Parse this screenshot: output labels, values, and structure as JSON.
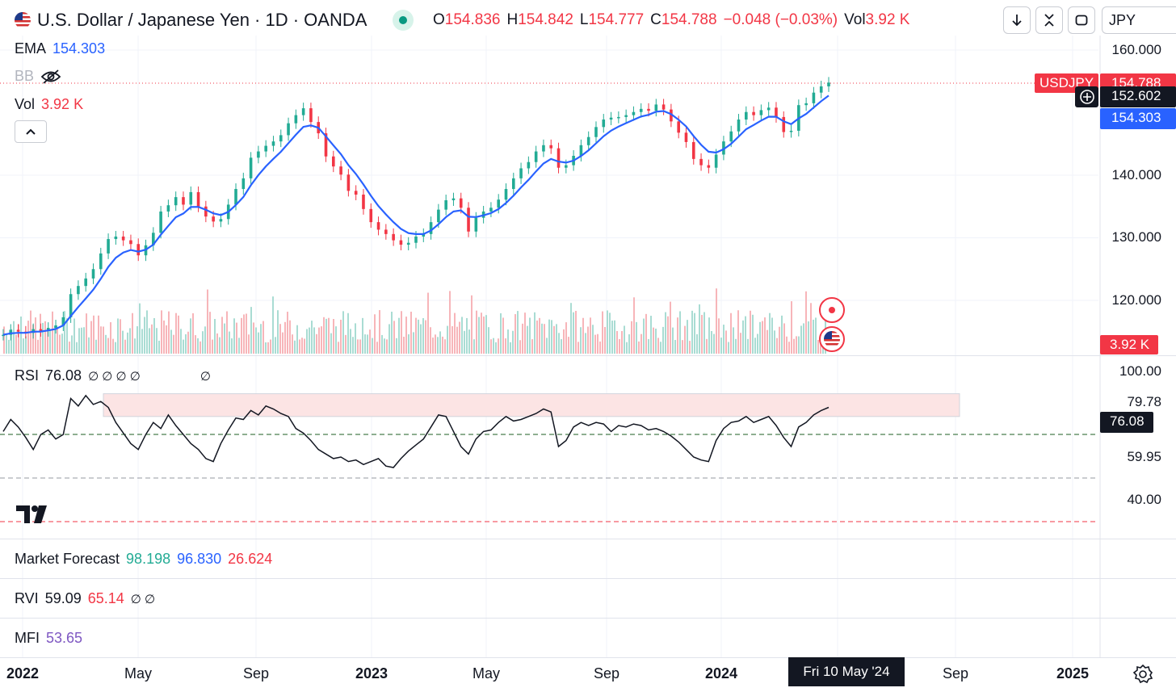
{
  "header": {
    "title": "U.S. Dollar / Japanese Yen · 1D · OANDA",
    "ohlc": [
      {
        "label": "O",
        "value": "154.836"
      },
      {
        "label": "H",
        "value": "154.842"
      },
      {
        "label": "L",
        "value": "154.777"
      },
      {
        "label": "C",
        "value": "154.788"
      }
    ],
    "change": "−0.048 (−0.03%)",
    "vol_label": "Vol",
    "vol_value": "3.92 K",
    "currency": "JPY"
  },
  "toolbar": {
    "icons": [
      "arrow-down-icon",
      "collapse-icon",
      "fullscreen-icon"
    ],
    "collapse_glyph": "^"
  },
  "legends": {
    "ema_label": "EMA",
    "ema_value": "154.303",
    "bb_label": "BB",
    "vol_label": "Vol",
    "vol_value": "3.92 K",
    "rsi_label": "RSI",
    "rsi_value": "76.08",
    "rsi_glyphs": "∅ ∅ ∅ ∅",
    "rsi_glyph2": "∅",
    "mf_label": "Market Forecast",
    "mf_v1": "98.198",
    "mf_v2": "96.830",
    "mf_v3": "26.624",
    "rvi_label": "RVI",
    "rvi_v1": "59.09",
    "rvi_v2": "65.14",
    "rvi_glyphs": "∅ ∅",
    "mfi_label": "MFI",
    "mfi_value": "53.65"
  },
  "price_axis": {
    "ticks": [
      "160.000",
      "140.000",
      "130.000",
      "120.000"
    ],
    "symbol_tag": "USDJPY",
    "last_price": "154.788",
    "crosshair_price": "152.602",
    "ema_tag": "154.303",
    "vol_tag": "3.92 K"
  },
  "rsi_axis": {
    "ticks": [
      "100.00",
      "79.78",
      "59.95",
      "40.00"
    ],
    "current": "76.08"
  },
  "time_axis": {
    "labels": [
      {
        "text": "2022",
        "bold": true
      },
      {
        "text": "May",
        "bold": false
      },
      {
        "text": "Sep",
        "bold": false
      },
      {
        "text": "2023",
        "bold": true
      },
      {
        "text": "May",
        "bold": false
      },
      {
        "text": "Sep",
        "bold": false
      },
      {
        "text": "2024",
        "bold": true
      },
      {
        "text": "Sep",
        "bold": false
      },
      {
        "text": "2025",
        "bold": true
      }
    ],
    "crosshair_date": "Fri 10 May '24"
  },
  "colors": {
    "up": "#22ab94",
    "down": "#f23645",
    "ema": "#2962ff",
    "rsi_band": "#fce4e4",
    "text": "#131722"
  },
  "chart_data": [
    {
      "type": "line",
      "title": "U.S. Dollar / Japanese Yen · 1D · OANDA",
      "series": [
        {
          "name": "USDJPY",
          "values": [
            114.5,
            115.3,
            115.0,
            114.8,
            115.4,
            115.1,
            115.6,
            116.0,
            117.3,
            121.0,
            122.3,
            123.5,
            125.0,
            127.5,
            129.8,
            130.2,
            129.6,
            129.0,
            127.2,
            128.8,
            130.8,
            134.2,
            135.2,
            136.5,
            135.3,
            137.3,
            135.0,
            133.4,
            132.6,
            133.0,
            135.3,
            137.8,
            139.5,
            142.8,
            143.8,
            144.7,
            145.4,
            146.4,
            148.3,
            149.6,
            150.7,
            148.5,
            146.7,
            143.0,
            141.4,
            140.1,
            137.5,
            136.9,
            134.6,
            132.5,
            131.3,
            130.6,
            129.6,
            128.9,
            129.2,
            130.2,
            130.6,
            132.5,
            134.5,
            136.0,
            136.3,
            134.8,
            131.0,
            133.2,
            134.2,
            134.8,
            136.1,
            137.8,
            139.5,
            141.1,
            142.1,
            143.8,
            144.8,
            144.3,
            141.2,
            141.6,
            143.1,
            144.8,
            146.1,
            147.7,
            148.9,
            149.2,
            149.3,
            149.6,
            150.1,
            150.6,
            150.3,
            151.3,
            150.5,
            148.6,
            146.8,
            145.3,
            142.6,
            141.6,
            141.2,
            143.3,
            145.4,
            147.0,
            148.9,
            150.1,
            149.6,
            150.4,
            150.8,
            149.3,
            146.9,
            147.1,
            151.2,
            151.5,
            153.2,
            154.2,
            154.8
          ]
        }
      ],
      "ema": {
        "name": "EMA",
        "last": 154.303
      },
      "ylim": [
        110,
        160
      ],
      "yticks": [
        120,
        130,
        140,
        160
      ],
      "x_range": [
        "2022-01-01",
        "2025-01-01"
      ],
      "x_step_days": 7
    },
    {
      "type": "line",
      "title": "RSI",
      "series": [
        {
          "name": "RSI",
          "values": [
            60,
            68,
            63,
            56,
            48,
            58,
            61,
            55,
            58,
            82,
            77,
            84,
            78,
            80,
            76,
            66,
            59,
            52,
            48,
            58,
            66,
            62,
            71,
            64,
            58,
            52,
            48,
            42,
            40,
            52,
            61,
            69,
            68,
            74,
            71,
            77,
            75,
            72,
            70,
            62,
            59,
            54,
            48,
            45,
            42,
            43,
            40,
            41,
            38,
            40,
            42,
            37,
            36,
            42,
            47,
            51,
            55,
            63,
            71,
            70,
            60,
            50,
            45,
            55,
            60,
            61,
            66,
            70,
            67,
            68,
            70,
            72,
            75,
            73,
            50,
            54,
            63,
            66,
            64,
            66,
            65,
            60,
            64,
            63,
            65,
            64,
            61,
            62,
            60,
            57,
            53,
            48,
            43,
            41,
            40,
            54,
            62,
            66,
            67,
            70,
            66,
            68,
            70,
            64,
            56,
            50,
            63,
            66,
            71,
            74,
            76.08
          ]
        }
      ],
      "ylim": [
        0,
        100
      ],
      "band": [
        70,
        79.78
      ]
    }
  ]
}
